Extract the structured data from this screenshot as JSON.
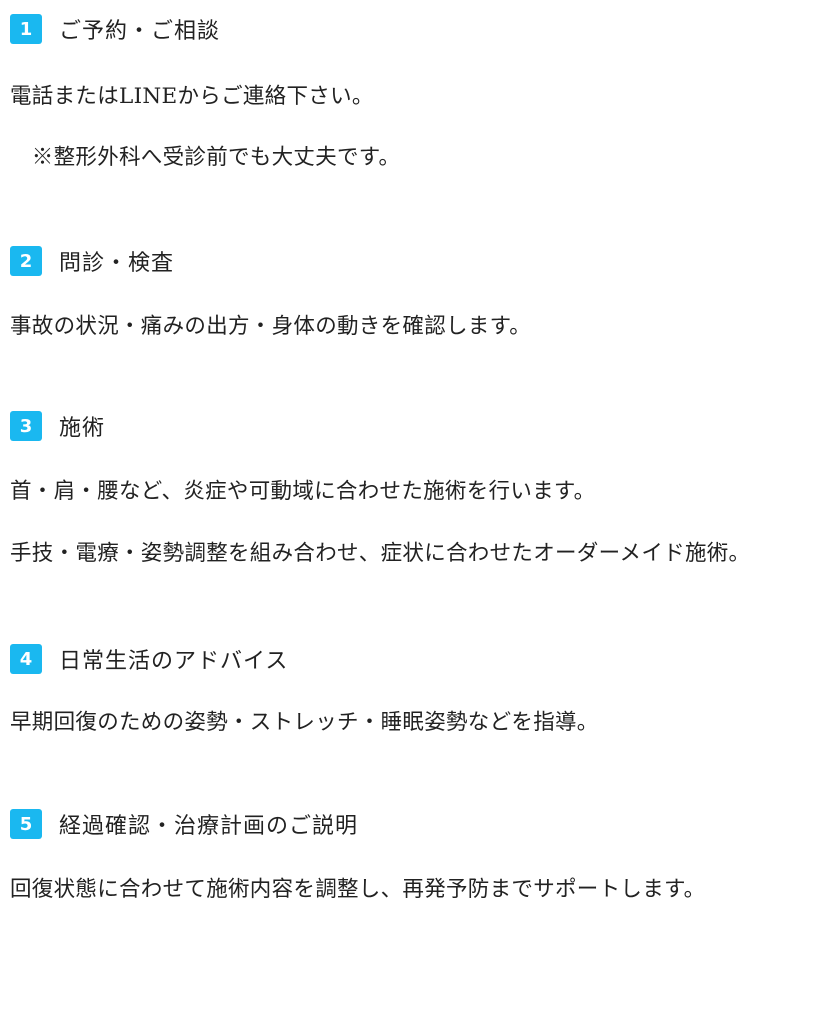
{
  "accent_color": "#1ab8f0",
  "steps": [
    {
      "number": "1",
      "title": "ご予約・ご相談",
      "lines": [
        "電話またはLINEからご連絡下さい。",
        "　※整形外科へ受診前でも大丈夫です。"
      ]
    },
    {
      "number": "2",
      "title": "問診・検査",
      "lines": [
        "事故の状況・痛みの出方・身体の動きを確認します。"
      ]
    },
    {
      "number": "3",
      "title": "施術",
      "lines": [
        "首・肩・腰など、炎症や可動域に合わせた施術を行います。",
        "手技・電療・姿勢調整を組み合わせ、症状に合わせたオーダーメイド施術。"
      ]
    },
    {
      "number": "4",
      "title": "日常生活のアドバイス",
      "lines": [
        "早期回復のための姿勢・ストレッチ・睡眠姿勢などを指導。"
      ]
    },
    {
      "number": "5",
      "title": "経過確認・治療計画のご説明",
      "lines": [
        "回復状態に合わせて施術内容を調整し、再発予防までサポートします。"
      ]
    }
  ]
}
